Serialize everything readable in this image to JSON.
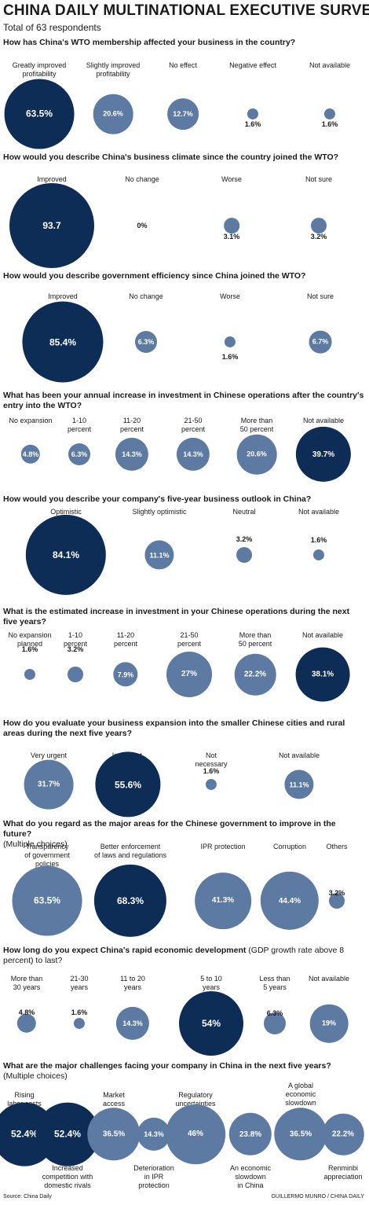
{
  "title": "CHINA DAILY MULTINATIONAL EXECUTIVE SURVEY",
  "subtitle": "Total of 63 respondents",
  "colors": {
    "light_bubble": "#5d7aa3",
    "dark_bubble": "#0d2d57"
  },
  "source": "Source: China Daily",
  "credit": "GUILLERMO MUNRO / CHINA DAILY",
  "questions": [
    {
      "question": "How has China's WTO membership affected your business in the country?",
      "note": "",
      "items": [
        {
          "label": "Greatly improved\nprofitability",
          "value_text": "63.5%",
          "value": 63.5,
          "dark": true,
          "inside": true
        },
        {
          "label": "Slightly improved\nprofitability",
          "value_text": "20.6%",
          "value": 20.6,
          "dark": false,
          "inside": true
        },
        {
          "label": "No effect",
          "value_text": "12.7%",
          "value": 12.7,
          "dark": false,
          "inside": true
        },
        {
          "label": "Negative effect",
          "value_text": "1.6%",
          "value": 1.6,
          "dark": false,
          "inside": false
        },
        {
          "label": "Not available",
          "value_text": "1.6%",
          "value": 1.6,
          "dark": false,
          "inside": false
        }
      ]
    },
    {
      "question": "How would you describe China's business climate since the country joined the WTO?",
      "note": "",
      "items": [
        {
          "label": "Improved",
          "value_text": "93.7",
          "value": 93.7,
          "dark": true,
          "inside": true
        },
        {
          "label": "No change",
          "value_text": "0%",
          "value": 0,
          "dark": false,
          "inside": false
        },
        {
          "label": "Worse",
          "value_text": "3.1%",
          "value": 3.1,
          "dark": false,
          "inside": false
        },
        {
          "label": "Not sure",
          "value_text": "3.2%",
          "value": 3.2,
          "dark": false,
          "inside": false
        }
      ]
    },
    {
      "question": "How would you describe government efficiency since China joined the WTO?",
      "note": "",
      "items": [
        {
          "label": "Improved",
          "value_text": "85.4%",
          "value": 85.4,
          "dark": true,
          "inside": true
        },
        {
          "label": "No change",
          "value_text": "6.3%",
          "value": 6.3,
          "dark": false,
          "inside": true
        },
        {
          "label": "Worse",
          "value_text": "1.6%",
          "value": 1.6,
          "dark": false,
          "inside": false
        },
        {
          "label": "Not sure",
          "value_text": "6.7%",
          "value": 6.7,
          "dark": false,
          "inside": true
        }
      ]
    },
    {
      "question": "What has been your annual increase in investment in Chinese operations after the country's entry into the WTO?",
      "note": "",
      "items": [
        {
          "label": "No expansion",
          "value_text": "4.8%",
          "value": 4.8,
          "dark": false,
          "inside": true
        },
        {
          "label": "1-10\npercent",
          "value_text": "6.3%",
          "value": 6.3,
          "dark": false,
          "inside": true
        },
        {
          "label": "11-20\npercent",
          "value_text": "14.3%",
          "value": 14.3,
          "dark": false,
          "inside": true
        },
        {
          "label": "21-50\npercent",
          "value_text": "14.3%",
          "value": 14.3,
          "dark": false,
          "inside": true
        },
        {
          "label": "More than\n50 percent",
          "value_text": "20.6%",
          "value": 20.6,
          "dark": false,
          "inside": true
        },
        {
          "label": "Not available",
          "value_text": "39.7%",
          "value": 39.7,
          "dark": true,
          "inside": true
        }
      ]
    },
    {
      "question": "How would you describe your company's five-year business outlook in China?",
      "note": "",
      "items": [
        {
          "label": "Optimistic",
          "value_text": "84.1%",
          "value": 84.1,
          "dark": true,
          "inside": true
        },
        {
          "label": "Slightly optimistic",
          "value_text": "11.1%",
          "value": 11.1,
          "dark": false,
          "inside": true
        },
        {
          "label": "Neutral",
          "value_text": "3.2%",
          "value": 3.2,
          "dark": false,
          "inside": false
        },
        {
          "label": "Not available",
          "value_text": "1.6%",
          "value": 1.6,
          "dark": false,
          "inside": false
        }
      ]
    },
    {
      "question": "What is the estimated increase in investment in your Chinese operations during the next five years?",
      "note": "",
      "items": [
        {
          "label": "No expansion\nplanned",
          "value_text": "1.6%",
          "value": 1.6,
          "dark": false,
          "inside": false
        },
        {
          "label": "1-10\npercent",
          "value_text": "3.2%",
          "value": 3.2,
          "dark": false,
          "inside": false
        },
        {
          "label": "11-20\npercent",
          "value_text": "7.9%",
          "value": 7.9,
          "dark": false,
          "inside": true
        },
        {
          "label": "21-50\npercent",
          "value_text": "27%",
          "value": 27,
          "dark": false,
          "inside": true
        },
        {
          "label": "More than\n50 percent",
          "value_text": "22.2%",
          "value": 22.2,
          "dark": false,
          "inside": true
        },
        {
          "label": "Not available",
          "value_text": "38.1%",
          "value": 38.1,
          "dark": true,
          "inside": true
        }
      ]
    },
    {
      "question": "How do you evaluate your business expansion into the smaller Chinese cities and rural areas during the next five years?",
      "note": "",
      "items": [
        {
          "label": "Very urgent",
          "value_text": "31.7%",
          "value": 31.7,
          "dark": false,
          "inside": true
        },
        {
          "label": "Important,\nbut not urgent",
          "value_text": "55.6%",
          "value": 55.6,
          "dark": true,
          "inside": true
        },
        {
          "label": "Not\nnecessary",
          "value_text": "1.6%",
          "value": 1.6,
          "dark": false,
          "inside": false
        },
        {
          "label": "Not available",
          "value_text": "11.1%",
          "value": 11.1,
          "dark": false,
          "inside": true
        }
      ]
    },
    {
      "question": "What do you regard as the major areas for the Chinese government to improve in the future?",
      "note": "(Multiple choices)",
      "items": [
        {
          "label": "Transparency\nof government\npolicies",
          "value_text": "63.5%",
          "value": 63.5,
          "dark": false,
          "inside": true
        },
        {
          "label": "Better enforcement\nof laws and regulations",
          "value_text": "68.3%",
          "value": 68.3,
          "dark": true,
          "inside": true
        },
        {
          "label": "IPR protection",
          "value_text": "41.3%",
          "value": 41.3,
          "dark": false,
          "inside": true
        },
        {
          "label": "Corruption",
          "value_text": "44.4%",
          "value": 44.4,
          "dark": false,
          "inside": true
        },
        {
          "label": "Others",
          "value_text": "3.2%",
          "value": 3.2,
          "dark": false,
          "inside": false
        }
      ]
    },
    {
      "question": "How long do you expect China's rapid economic development",
      "note": "(GDP growth rate above 8 percent) to last?",
      "items": [
        {
          "label": "More than\n30 years",
          "value_text": "4.8%",
          "value": 4.8,
          "dark": false,
          "inside": false
        },
        {
          "label": "21-30\nyears",
          "value_text": "1.6%",
          "value": 1.6,
          "dark": false,
          "inside": false
        },
        {
          "label": "11 to 20\nyears",
          "value_text": "14.3%",
          "value": 14.3,
          "dark": false,
          "inside": true
        },
        {
          "label": "5 to 10\nyears",
          "value_text": "54%",
          "value": 54,
          "dark": true,
          "inside": true
        },
        {
          "label": "Less than\n5 years",
          "value_text": "6.3%",
          "value": 6.3,
          "dark": false,
          "inside": false
        },
        {
          "label": "Not available",
          "value_text": "19%",
          "value": 19,
          "dark": false,
          "inside": true
        }
      ]
    },
    {
      "question": "What are the major challenges facing your company in China in the next five years?",
      "note": "(Multiple choices)",
      "items": [
        {
          "label": "Rising\nlabor costs",
          "value_text": "52.4%",
          "value": 52.4,
          "dark": true,
          "inside": true
        },
        {
          "label": "Increased\ncompetition with\ndomestic rivals",
          "value_text": "52.4%",
          "value": 52.4,
          "dark": true,
          "inside": true
        },
        {
          "label": "Market\naccess",
          "value_text": "36.5%",
          "value": 36.5,
          "dark": false,
          "inside": true
        },
        {
          "label": "Deterioration\nin IPR\nprotection",
          "value_text": "14.3%",
          "value": 14.3,
          "dark": false,
          "inside": true
        },
        {
          "label": "Regulatory\nuncertainties",
          "value_text": "46%",
          "value": 46,
          "dark": false,
          "inside": true
        },
        {
          "label": "An economic\nslowdown\nin China",
          "value_text": "23.8%",
          "value": 23.8,
          "dark": false,
          "inside": true
        },
        {
          "label": "A global\neconomic\nslowdown",
          "value_text": "36.5%",
          "value": 36.5,
          "dark": false,
          "inside": true
        },
        {
          "label": "Renminbi\nappreciation",
          "value_text": "22.2%",
          "value": 22.2,
          "dark": false,
          "inside": true
        }
      ]
    }
  ],
  "chart_data": [
    {
      "type": "bubble",
      "title": "How has China's WTO membership affected your business in the country?",
      "categories": [
        "Greatly improved profitability",
        "Slightly improved profitability",
        "No effect",
        "Negative effect",
        "Not available"
      ],
      "values": [
        63.5,
        20.6,
        12.7,
        1.6,
        1.6
      ]
    },
    {
      "type": "bubble",
      "title": "How would you describe China's business climate since the country joined the WTO?",
      "categories": [
        "Improved",
        "No change",
        "Worse",
        "Not sure"
      ],
      "values": [
        93.7,
        0,
        3.1,
        3.2
      ]
    },
    {
      "type": "bubble",
      "title": "How would you describe government efficiency since China joined the WTO?",
      "categories": [
        "Improved",
        "No change",
        "Worse",
        "Not sure"
      ],
      "values": [
        85.4,
        6.3,
        1.6,
        6.7
      ]
    },
    {
      "type": "bubble",
      "title": "What has been your annual increase in investment in Chinese operations after the country's entry into the WTO?",
      "categories": [
        "No expansion",
        "1-10 percent",
        "11-20 percent",
        "21-50 percent",
        "More than 50 percent",
        "Not available"
      ],
      "values": [
        4.8,
        6.3,
        14.3,
        14.3,
        20.6,
        39.7
      ]
    },
    {
      "type": "bubble",
      "title": "How would you describe your company's five-year business outlook in China?",
      "categories": [
        "Optimistic",
        "Slightly optimistic",
        "Neutral",
        "Not available"
      ],
      "values": [
        84.1,
        11.1,
        3.2,
        1.6
      ]
    },
    {
      "type": "bubble",
      "title": "What is the estimated increase in investment in your Chinese operations during the next five years?",
      "categories": [
        "No expansion planned",
        "1-10 percent",
        "11-20 percent",
        "21-50 percent",
        "More than 50 percent",
        "Not available"
      ],
      "values": [
        1.6,
        3.2,
        7.9,
        27,
        22.2,
        38.1
      ]
    },
    {
      "type": "bubble",
      "title": "How do you evaluate your business expansion into the smaller Chinese cities and rural areas during the next five years?",
      "categories": [
        "Very urgent",
        "Important, but not urgent",
        "Not necessary",
        "Not available"
      ],
      "values": [
        31.7,
        55.6,
        1.6,
        11.1
      ]
    },
    {
      "type": "bubble",
      "title": "What do you regard as the major areas for the Chinese government to improve in the future? (Multiple choices)",
      "categories": [
        "Transparency of government policies",
        "Better enforcement of laws and regulations",
        "IPR protection",
        "Corruption",
        "Others"
      ],
      "values": [
        63.5,
        68.3,
        41.3,
        44.4,
        3.2
      ]
    },
    {
      "type": "bubble",
      "title": "How long do you expect China's rapid economic development (GDP growth rate above 8 percent) to last?",
      "categories": [
        "More than 30 years",
        "21-30 years",
        "11 to 20 years",
        "5 to 10 years",
        "Less than 5 years",
        "Not available"
      ],
      "values": [
        4.8,
        1.6,
        14.3,
        54,
        6.3,
        19
      ]
    },
    {
      "type": "bubble",
      "title": "What are the major challenges facing your company in China in the next five years? (Multiple choices)",
      "categories": [
        "Rising labor costs",
        "Increased competition with domestic rivals",
        "Market access",
        "Deterioration in IPR protection",
        "Regulatory uncertainties",
        "An economic slowdown in China",
        "A global economic slowdown",
        "Renminbi appreciation"
      ],
      "values": [
        52.4,
        52.4,
        36.5,
        14.3,
        46,
        23.8,
        36.5,
        22.2
      ]
    }
  ]
}
